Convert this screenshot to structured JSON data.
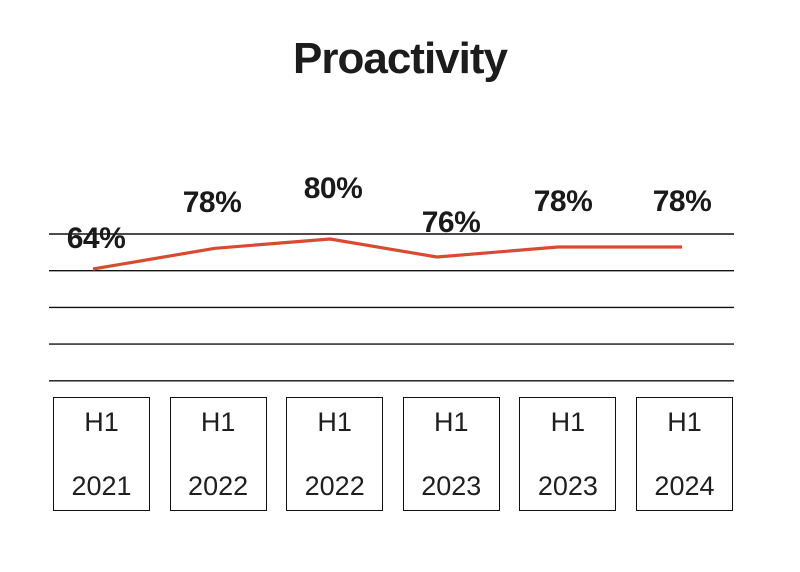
{
  "page": {
    "background": "#ffffff"
  },
  "chart_data": {
    "type": "line",
    "title": "Proactivity",
    "categories": [
      {
        "period": "H1",
        "year": "2021"
      },
      {
        "period": "H1",
        "year": "2022"
      },
      {
        "period": "H1",
        "year": "2022"
      },
      {
        "period": "H1",
        "year": "2023"
      },
      {
        "period": "H1",
        "year": "2023"
      },
      {
        "period": "H1",
        "year": "2024"
      }
    ],
    "values": [
      64,
      78,
      80,
      76,
      78,
      78
    ],
    "labels": [
      "64%",
      "78%",
      "80%",
      "76%",
      "78%",
      "78%"
    ],
    "ylim": [
      0,
      100
    ],
    "gridline_count": 5,
    "grid": true,
    "legend": false,
    "line_color": "#d94a32",
    "grid_color": "#111111",
    "text_color": "#1a1a1a",
    "background": "#ffffff"
  }
}
